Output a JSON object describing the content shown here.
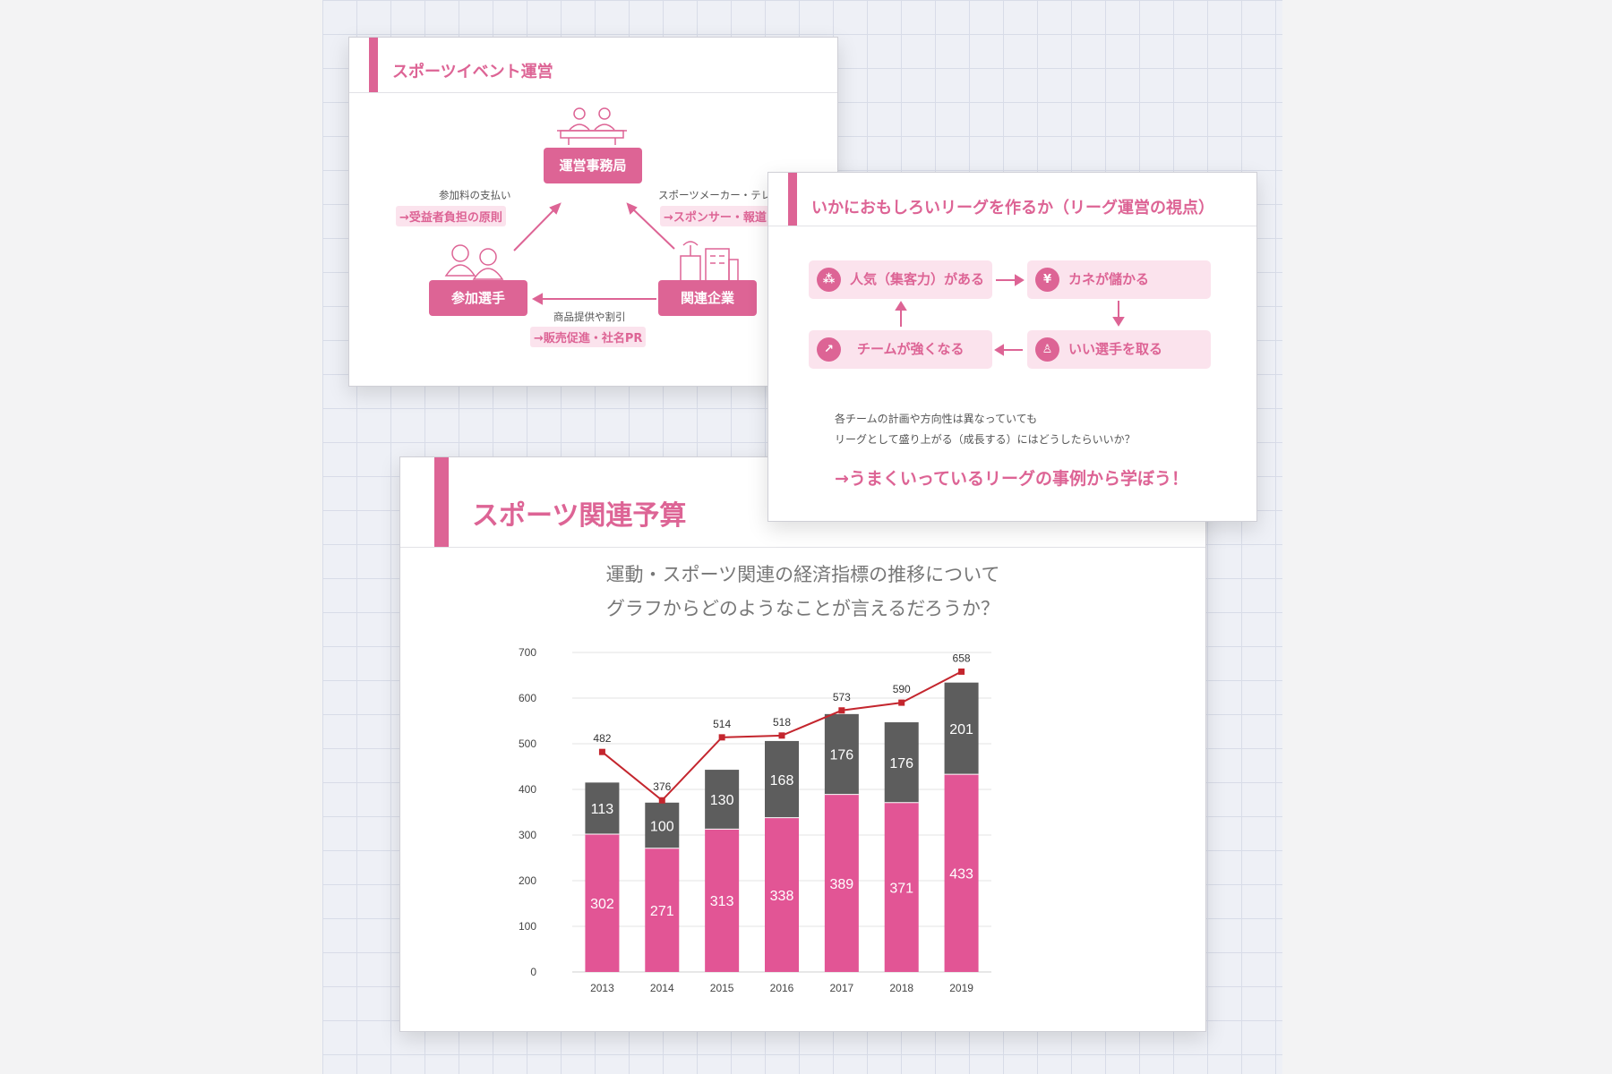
{
  "card1": {
    "title": "スポーツイベント運営",
    "office": "運営事務局",
    "participants": "参加選手",
    "companies": "関連企業",
    "left_note": "参加料の支払い",
    "left_highlight": "→受益者負担の原則",
    "right_note": "スポーツメーカー・テレ",
    "right_highlight": "→スポンサー・報道",
    "bottom_note": "商品提供や割引",
    "bottom_highlight": "→販売促進・社名PR"
  },
  "card2": {
    "title": "いかにおもしろいリーグを作るか（リーグ運営の視点）",
    "cycle": [
      {
        "label": "人気（集客力）がある",
        "icon": "people-icon",
        "glyph": "⁂"
      },
      {
        "label": "カネが儲かる",
        "icon": "yen-icon",
        "glyph": "¥"
      },
      {
        "label": "いい選手を取る",
        "icon": "person-icon",
        "glyph": "♙"
      },
      {
        "label": "チームが強くなる",
        "icon": "trend-up-icon",
        "glyph": "↗"
      }
    ],
    "para1": "各チームの計画や方向性は異なっていても",
    "para2": "リーグとして盛り上がる（成長する）にはどうしたらいいか？",
    "conclusion": "→うまくいっているリーグの事例から学ぼう！"
  },
  "card3": {
    "title": "スポーツ関連予算",
    "subtitle1": "運動・スポーツ関連の経済指標の推移について",
    "subtitle2": "グラフからどのようなことが言えるだろうか？"
  },
  "colors": {
    "accent": "#dd6495",
    "bar_pink": "#e25595",
    "bar_gray": "#5d5d5d",
    "line_red": "#c4262e"
  },
  "chart_data": {
    "type": "bar",
    "stacked": true,
    "categories": [
      "2013",
      "2014",
      "2015",
      "2016",
      "2017",
      "2018",
      "2019"
    ],
    "series": [
      {
        "values": [
          302,
          271,
          313,
          338,
          389,
          371,
          433
        ]
      },
      {
        "values": [
          113,
          100,
          130,
          168,
          176,
          176,
          201
        ]
      },
      {
        "type": "line",
        "values": [
          482,
          376,
          514,
          518,
          573,
          590,
          658
        ]
      }
    ],
    "yticks": [
      0,
      100,
      200,
      300,
      400,
      500,
      600,
      700
    ],
    "ylim": [
      0,
      700
    ],
    "xlabel": "",
    "ylabel": "",
    "grid": true,
    "legend": "none"
  }
}
